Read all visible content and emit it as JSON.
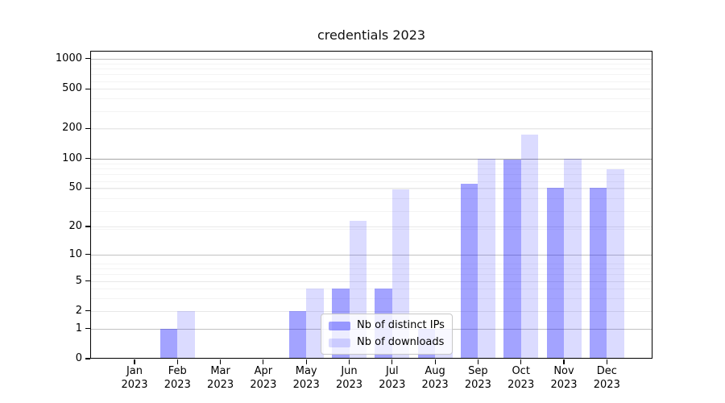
{
  "chart_data": {
    "type": "bar",
    "title": "credentials 2023",
    "x": {
      "months": [
        "Jan",
        "Feb",
        "Mar",
        "Apr",
        "May",
        "Jun",
        "Jul",
        "Aug",
        "Sep",
        "Oct",
        "Nov",
        "Dec"
      ],
      "year": "2023"
    },
    "series": [
      {
        "name": "Nb of distinct IPs",
        "color": "rgba(0,0,255,0.36)",
        "values": [
          0,
          1,
          0,
          0,
          2,
          4,
          4,
          1,
          55,
          97,
          50,
          50
        ]
      },
      {
        "name": "Nb of downloads",
        "color": "rgba(0,0,255,0.14)",
        "values": [
          0,
          2,
          0,
          0,
          4,
          23,
          48,
          1,
          100,
          175,
          100,
          78
        ]
      }
    ],
    "yticks": [
      0,
      1,
      2,
      5,
      10,
      20,
      50,
      100,
      200,
      500,
      1000
    ],
    "ytick_labels": [
      "0",
      "1",
      "2",
      "5",
      "10",
      "20",
      "50",
      "100",
      "200",
      "500",
      "1000"
    ],
    "ylim": [
      0,
      1000
    ],
    "yscale": "log1p",
    "grid": "horizontal",
    "legend": {
      "position": "lower-center"
    }
  },
  "colors": {
    "background": "#ffffff",
    "axis": "#000000",
    "grid_decade": "#c2c2c2",
    "grid_hundred": "#a5a5a5",
    "grid_major": "#e8e8e8",
    "grid_minor": "#f4f4f4"
  }
}
